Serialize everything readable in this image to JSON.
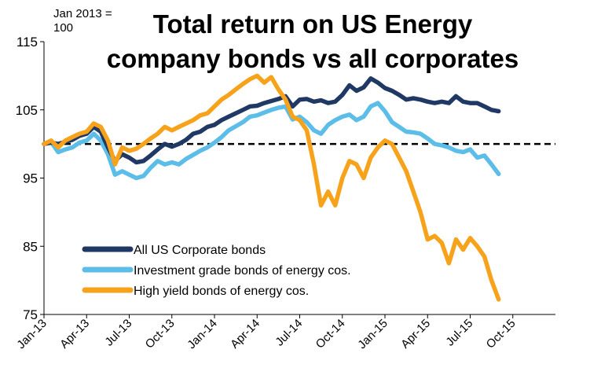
{
  "chart_data": {
    "type": "line",
    "title_lines": [
      "Total return on US Energy",
      "company bonds vs all corporates"
    ],
    "index_note_lines": [
      "Jan 2013 =",
      "100"
    ],
    "ylim": [
      75,
      115
    ],
    "yticks": [
      75,
      85,
      95,
      105,
      115
    ],
    "x_tick_labels": [
      "Jan-13",
      "Apr-13",
      "Jul-13",
      "Oct-13",
      "Jan-14",
      "Apr-14",
      "Jul-14",
      "Oct-14",
      "Jan-15",
      "Apr-15",
      "Jul-15",
      "Oct-15"
    ],
    "x_range_months": [
      0,
      36
    ],
    "reference_line": 100,
    "legend_position": "bottom-left",
    "grid": false,
    "series": [
      {
        "name": "All US Corporate bonds",
        "color": "#1f3864",
        "points": [
          [
            0,
            100
          ],
          [
            0.5,
            100.2
          ],
          [
            1,
            100
          ],
          [
            1.5,
            100.3
          ],
          [
            2,
            100.6
          ],
          [
            2.5,
            101.2
          ],
          [
            3,
            101.5
          ],
          [
            3.5,
            102.5
          ],
          [
            4,
            101.8
          ],
          [
            4.5,
            99.5
          ],
          [
            5,
            97.5
          ],
          [
            5.5,
            98.5
          ],
          [
            6,
            98.0
          ],
          [
            6.5,
            97.3
          ],
          [
            7,
            97.5
          ],
          [
            7.5,
            98.3
          ],
          [
            8,
            99.2
          ],
          [
            8.5,
            100.0
          ],
          [
            9,
            99.6
          ],
          [
            9.5,
            100.0
          ],
          [
            10,
            100.6
          ],
          [
            10.5,
            101.5
          ],
          [
            11,
            101.8
          ],
          [
            11.5,
            102.5
          ],
          [
            12,
            102.8
          ],
          [
            12.5,
            103.5
          ],
          [
            13,
            104.0
          ],
          [
            13.5,
            104.5
          ],
          [
            14,
            105.0
          ],
          [
            14.5,
            105.5
          ],
          [
            15,
            105.6
          ],
          [
            15.5,
            106.0
          ],
          [
            16,
            106.3
          ],
          [
            16.5,
            106.6
          ],
          [
            17,
            107.0
          ],
          [
            17.5,
            105.5
          ],
          [
            18,
            106.5
          ],
          [
            18.5,
            106.6
          ],
          [
            19,
            106.2
          ],
          [
            19.5,
            106.4
          ],
          [
            20,
            106.0
          ],
          [
            20.5,
            106.2
          ],
          [
            21,
            107.2
          ],
          [
            21.5,
            108.6
          ],
          [
            22,
            107.8
          ],
          [
            22.5,
            108.3
          ],
          [
            23,
            109.6
          ],
          [
            23.5,
            109.0
          ],
          [
            24,
            108.2
          ],
          [
            24.5,
            107.8
          ],
          [
            25,
            107.2
          ],
          [
            25.5,
            106.5
          ],
          [
            26,
            106.7
          ],
          [
            26.5,
            106.5
          ],
          [
            27,
            106.2
          ],
          [
            27.5,
            106.0
          ],
          [
            28,
            106.2
          ],
          [
            28.5,
            106.0
          ],
          [
            29,
            107.0
          ],
          [
            29.5,
            106.2
          ],
          [
            30,
            106.0
          ],
          [
            30.5,
            106.0
          ],
          [
            31,
            105.5
          ],
          [
            31.5,
            105.0
          ],
          [
            32,
            104.8
          ]
        ]
      },
      {
        "name": "Investment grade bonds of energy cos.",
        "color": "#5bbde8",
        "points": [
          [
            0,
            100
          ],
          [
            0.5,
            100.3
          ],
          [
            1,
            98.8
          ],
          [
            1.5,
            99.2
          ],
          [
            2,
            99.5
          ],
          [
            2.5,
            100.2
          ],
          [
            3,
            100.5
          ],
          [
            3.5,
            101.5
          ],
          [
            4,
            100.5
          ],
          [
            4.5,
            98.5
          ],
          [
            5,
            95.5
          ],
          [
            5.5,
            96.0
          ],
          [
            6,
            95.5
          ],
          [
            6.5,
            95.0
          ],
          [
            7,
            95.3
          ],
          [
            7.5,
            96.5
          ],
          [
            8,
            97.5
          ],
          [
            8.5,
            97.0
          ],
          [
            9,
            97.3
          ],
          [
            9.5,
            97.0
          ],
          [
            10,
            97.8
          ],
          [
            10.5,
            98.4
          ],
          [
            11,
            99.0
          ],
          [
            11.5,
            99.5
          ],
          [
            12,
            100.2
          ],
          [
            12.5,
            101.0
          ],
          [
            13,
            102.0
          ],
          [
            13.5,
            102.6
          ],
          [
            14,
            103.2
          ],
          [
            14.5,
            104.0
          ],
          [
            15,
            104.2
          ],
          [
            15.5,
            104.6
          ],
          [
            16,
            105.0
          ],
          [
            16.5,
            105.3
          ],
          [
            17,
            105.5
          ],
          [
            17.5,
            103.6
          ],
          [
            18,
            104.0
          ],
          [
            18.5,
            103.2
          ],
          [
            19,
            102.0
          ],
          [
            19.5,
            101.5
          ],
          [
            20,
            102.8
          ],
          [
            20.5,
            103.5
          ],
          [
            21,
            104.0
          ],
          [
            21.5,
            104.3
          ],
          [
            22,
            103.5
          ],
          [
            22.5,
            104.0
          ],
          [
            23,
            105.5
          ],
          [
            23.5,
            106.0
          ],
          [
            24,
            104.8
          ],
          [
            24.5,
            103.2
          ],
          [
            25,
            102.5
          ],
          [
            25.5,
            101.8
          ],
          [
            26,
            101.7
          ],
          [
            26.5,
            101.5
          ],
          [
            27,
            100.8
          ],
          [
            27.5,
            100.0
          ],
          [
            28,
            99.8
          ],
          [
            28.5,
            99.5
          ],
          [
            29,
            99.0
          ],
          [
            29.5,
            98.8
          ],
          [
            30,
            99.2
          ],
          [
            30.5,
            98.0
          ],
          [
            31,
            98.3
          ],
          [
            31.5,
            97.0
          ],
          [
            32,
            95.6
          ]
        ]
      },
      {
        "name": "High yield bonds of energy cos.",
        "color": "#f7a21b",
        "points": [
          [
            0,
            100
          ],
          [
            0.5,
            100.5
          ],
          [
            1,
            99.5
          ],
          [
            1.5,
            100.5
          ],
          [
            2,
            101.0
          ],
          [
            2.5,
            101.5
          ],
          [
            3,
            101.8
          ],
          [
            3.5,
            103.0
          ],
          [
            4,
            102.5
          ],
          [
            4.5,
            100.5
          ],
          [
            5,
            97.0
          ],
          [
            5.5,
            99.5
          ],
          [
            6,
            99.0
          ],
          [
            6.5,
            99.3
          ],
          [
            7,
            100.0
          ],
          [
            7.5,
            100.8
          ],
          [
            8,
            101.5
          ],
          [
            8.5,
            102.5
          ],
          [
            9,
            102.0
          ],
          [
            9.5,
            102.5
          ],
          [
            10,
            103.0
          ],
          [
            10.5,
            103.5
          ],
          [
            11,
            104.2
          ],
          [
            11.5,
            104.5
          ],
          [
            12,
            105.5
          ],
          [
            12.5,
            106.5
          ],
          [
            13,
            107.2
          ],
          [
            13.5,
            108.0
          ],
          [
            14,
            108.8
          ],
          [
            14.5,
            109.5
          ],
          [
            15,
            110.0
          ],
          [
            15.5,
            109.0
          ],
          [
            16,
            109.8
          ],
          [
            16.5,
            108.0
          ],
          [
            17,
            106.5
          ],
          [
            17.5,
            104.0
          ],
          [
            18,
            103.5
          ],
          [
            18.5,
            102.0
          ],
          [
            19,
            97.0
          ],
          [
            19.5,
            91.0
          ],
          [
            20,
            93.0
          ],
          [
            20.5,
            91.0
          ],
          [
            21,
            95.0
          ],
          [
            21.5,
            97.5
          ],
          [
            22,
            97.0
          ],
          [
            22.5,
            95.0
          ],
          [
            23,
            98.0
          ],
          [
            23.5,
            99.5
          ],
          [
            24,
            100.5
          ],
          [
            24.5,
            100.0
          ],
          [
            25,
            98.0
          ],
          [
            25.5,
            96.0
          ],
          [
            26,
            93.0
          ],
          [
            26.5,
            90.0
          ],
          [
            27,
            86.0
          ],
          [
            27.5,
            86.5
          ],
          [
            28,
            85.5
          ],
          [
            28.5,
            82.5
          ],
          [
            29,
            86.0
          ],
          [
            29.5,
            84.5
          ],
          [
            30,
            86.2
          ],
          [
            30.5,
            85.0
          ],
          [
            31,
            83.5
          ],
          [
            31.5,
            80.0
          ],
          [
            32,
            77.2
          ]
        ]
      }
    ]
  }
}
